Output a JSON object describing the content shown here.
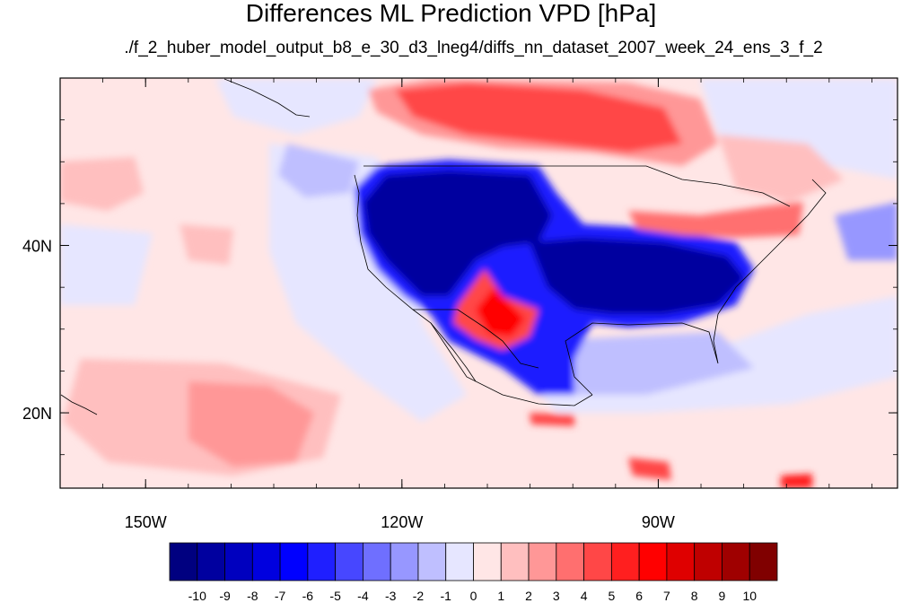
{
  "title": "Differences ML Prediction VPD [hPa]",
  "subtitle": "./f_2_huber_model_output_b8_e_30_d3_lneg4/diffs_nn_dataset_2007_week_24_ens_3_f_2",
  "map": {
    "lon_range": [
      -160,
      -62
    ],
    "lat_range": [
      11,
      60
    ],
    "lon_ticks": [
      {
        "value": -150,
        "label": "150W"
      },
      {
        "value": -120,
        "label": "120W"
      },
      {
        "value": -90,
        "label": "90W"
      }
    ],
    "lat_ticks": [
      {
        "value": 40,
        "label": "40N"
      },
      {
        "value": 20,
        "label": "20N"
      }
    ]
  },
  "colorbar": {
    "levels": [
      "-10",
      "-9",
      "-8",
      "-7",
      "-6",
      "-5",
      "-4",
      "-3",
      "-2",
      "-1",
      "0",
      "1",
      "2",
      "3",
      "4",
      "5",
      "6",
      "7",
      "8",
      "9",
      "10"
    ],
    "colors": [
      "#000080",
      "#00009f",
      "#0000bf",
      "#0000df",
      "#0000ff",
      "#1f1fff",
      "#4747ff",
      "#6f6fff",
      "#9797ff",
      "#bfbfff",
      "#e6e6ff",
      "#ffe6e6",
      "#ffbfbf",
      "#ff9797",
      "#ff6f6f",
      "#ff4747",
      "#ff1f1f",
      "#ff0000",
      "#df0000",
      "#bf0000",
      "#9f0000",
      "#800000"
    ]
  }
}
